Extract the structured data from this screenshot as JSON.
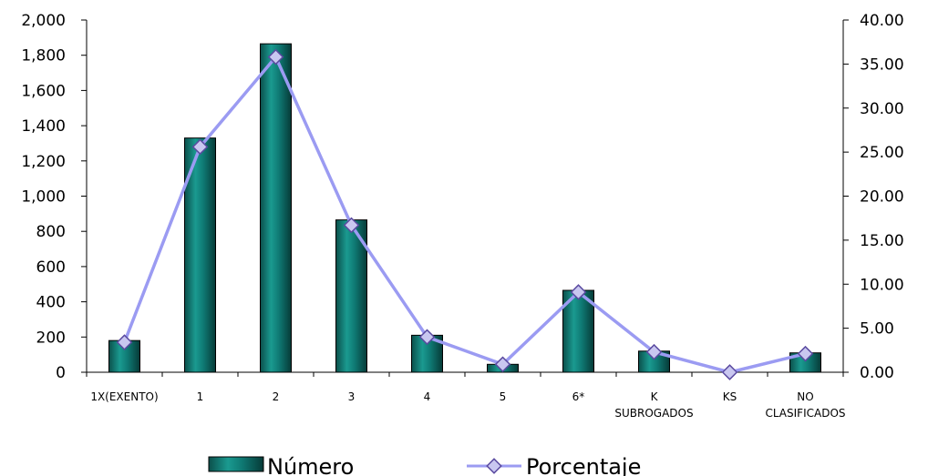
{
  "chart_data": {
    "type": "bar",
    "categories": [
      [
        "1X(EXENTO)"
      ],
      [
        "1"
      ],
      [
        "2"
      ],
      [
        "3"
      ],
      [
        "4"
      ],
      [
        "5"
      ],
      [
        "6*"
      ],
      [
        "K",
        "SUBROGADOS"
      ],
      [
        "KS"
      ],
      [
        "NO",
        "CLASIFICADOS"
      ]
    ],
    "series": [
      {
        "name": "Número",
        "type": "bar",
        "axis": "left",
        "color": "#0f7a74",
        "values": [
          180,
          1330,
          1865,
          865,
          210,
          45,
          465,
          120,
          0,
          110
        ]
      },
      {
        "name": "Porcentaje",
        "type": "line",
        "axis": "right",
        "color": "#9b9bf2",
        "marker_color": "#c9c7f0",
        "values": [
          3.4,
          25.6,
          35.8,
          16.7,
          4.0,
          0.9,
          9.1,
          2.3,
          0.0,
          2.1
        ]
      }
    ],
    "left_axis": {
      "ylim": [
        0,
        2000
      ],
      "ticks": [
        0,
        200,
        400,
        600,
        800,
        1000,
        1200,
        1400,
        1600,
        1800,
        2000
      ],
      "tick_labels": [
        "0",
        "200",
        "400",
        "600",
        "800",
        "1,000",
        "1,200",
        "1,400",
        "1,600",
        "1,800",
        "2,000"
      ]
    },
    "right_axis": {
      "ylim": [
        0,
        40
      ],
      "ticks": [
        0,
        5,
        10,
        15,
        20,
        25,
        30,
        35,
        40
      ],
      "tick_labels": [
        "0.00",
        "5.00",
        "10.00",
        "15.00",
        "20.00",
        "25.00",
        "30.00",
        "35.00",
        "40.00"
      ]
    },
    "grid": false,
    "legend": "bottom-center"
  }
}
